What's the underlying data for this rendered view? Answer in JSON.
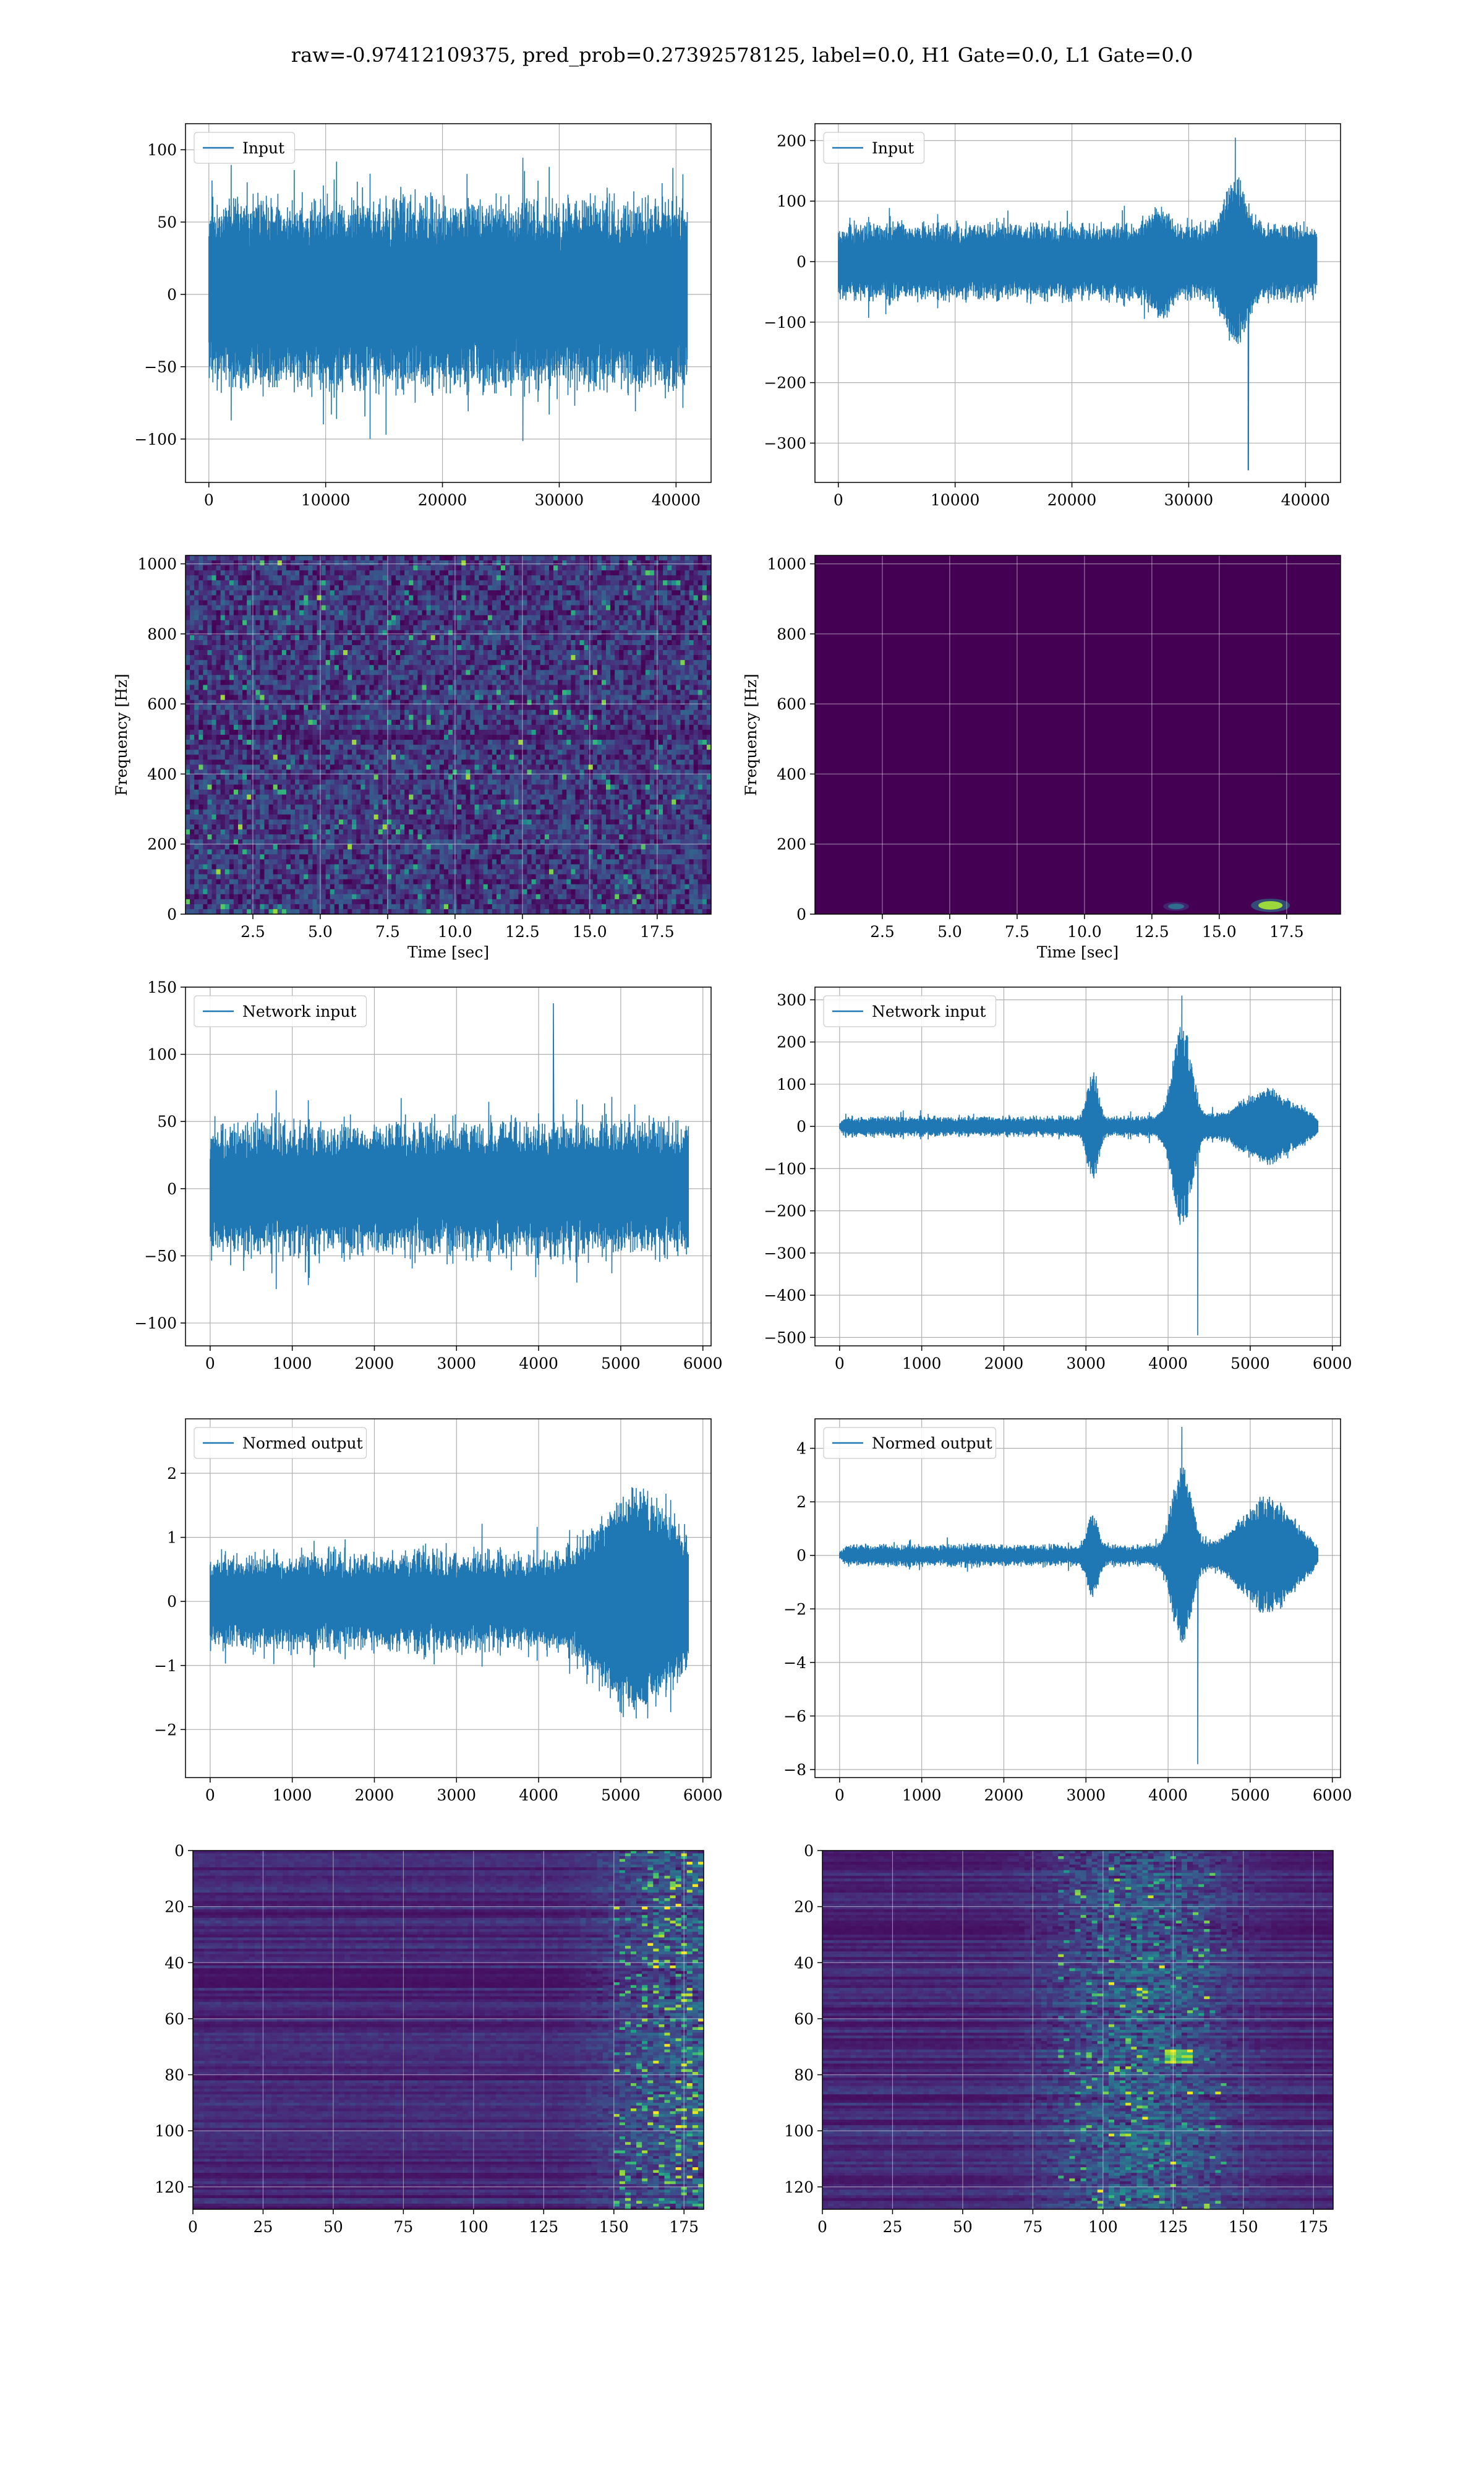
{
  "figure": {
    "title": "raw=-0.97412109375, pred_prob=0.27392578125, label=0.0, H1 Gate=0.0, L1 Gate=0.0"
  },
  "colors": {
    "series": "#1f77b4",
    "grid": "#b0b0b0",
    "viridis_dark": "#440154",
    "viridis_mid": "#21918c",
    "viridis_green": "#5ec962",
    "viridis_yellow": "#fde725"
  },
  "chart_data": [
    {
      "id": "h1-input",
      "type": "line",
      "legend": "Input",
      "legend_loc": "upper left",
      "grid": true,
      "xlim": [
        -2000,
        43000
      ],
      "ylim": [
        -130,
        118
      ],
      "x_ticks": [
        0,
        10000,
        20000,
        30000,
        40000
      ],
      "y_ticks": [
        -100,
        -50,
        0,
        50,
        100
      ],
      "x_range": [
        0,
        40960
      ],
      "n": 1200,
      "env_base": 62,
      "noise_amp": 10,
      "spike_prob": 0.05,
      "spike_amp": 45,
      "burst_centers": [],
      "burst_amps": [],
      "burst_widths": [],
      "burst_taper": 0,
      "glitch": null,
      "seed": 11
    },
    {
      "id": "l1-input",
      "type": "line",
      "legend": "Input",
      "legend_loc": "upper left",
      "grid": true,
      "xlim": [
        -2000,
        43000
      ],
      "ylim": [
        -365,
        228
      ],
      "x_ticks": [
        0,
        10000,
        20000,
        30000,
        40000
      ],
      "y_ticks": [
        -300,
        -200,
        -100,
        0,
        100,
        200
      ],
      "x_range": [
        0,
        40960
      ],
      "n": 1200,
      "env_base": 60,
      "noise_amp": 10,
      "spike_prob": 0.04,
      "spike_amp": 35,
      "burst_centers": [
        27500,
        34000
      ],
      "burst_amps": [
        40,
        95
      ],
      "burst_widths": [
        1100,
        1200
      ],
      "burst_taper": 0,
      "glitch": {
        "x": 35100,
        "y": -345,
        "peak": 205,
        "peak_x": 34000
      },
      "seed": 23
    },
    {
      "id": "h1-spectrogram",
      "type": "heatmap",
      "xlabel": "Time [sec]",
      "ylabel": "Frequency [Hz]",
      "grid": true,
      "xlim": [
        0,
        19.5
      ],
      "ylim": [
        0,
        1024
      ],
      "x_ticks": [
        2.5,
        5.0,
        7.5,
        10.0,
        12.5,
        15.0,
        17.5
      ],
      "x_tick_labels": [
        "2.5",
        "5.0",
        "7.5",
        "10.0",
        "12.5",
        "15.0",
        "17.5"
      ],
      "y_ticks": [
        0,
        200,
        400,
        600,
        800,
        1000
      ],
      "style": "speckle",
      "rows": 72,
      "cols": 120,
      "seed": 5
    },
    {
      "id": "l1-spectrogram",
      "type": "heatmap",
      "xlabel": "Time [sec]",
      "ylabel": "Frequency [Hz]",
      "grid": true,
      "xlim": [
        0,
        19.5
      ],
      "ylim": [
        0,
        1024
      ],
      "x_ticks": [
        2.5,
        5.0,
        7.5,
        10.0,
        12.5,
        15.0,
        17.5
      ],
      "x_tick_labels": [
        "2.5",
        "5.0",
        "7.5",
        "10.0",
        "12.5",
        "15.0",
        "17.5"
      ],
      "y_ticks": [
        0,
        200,
        400,
        600,
        800,
        1000
      ],
      "style": "flat",
      "hotspots": [
        {
          "x": 16.9,
          "y": 25,
          "w": 0.45,
          "h": 12,
          "level": 0.85
        },
        {
          "x": 13.4,
          "y": 22,
          "w": 0.3,
          "h": 8,
          "level": 0.35
        }
      ],
      "seed": 6
    },
    {
      "id": "h1-network-input",
      "type": "line",
      "legend": "Network input",
      "legend_loc": "upper left",
      "grid": true,
      "xlim": [
        -300,
        6100
      ],
      "ylim": [
        -117,
        150
      ],
      "x_ticks": [
        0,
        1000,
        2000,
        3000,
        4000,
        5000,
        6000
      ],
      "y_ticks": [
        -100,
        -50,
        0,
        50,
        100,
        150
      ],
      "x_range": [
        0,
        5824
      ],
      "n": 1000,
      "env_base": 45,
      "noise_amp": 12,
      "spike_prob": 0.07,
      "spike_amp": 28,
      "burst_centers": [],
      "burst_amps": [],
      "burst_widths": [],
      "burst_taper": 0,
      "glitch": {
        "x": 4180,
        "y": 138,
        "peak": 138,
        "peak_x": 4180
      },
      "seed": 31
    },
    {
      "id": "l1-network-input",
      "type": "line",
      "legend": "Network input",
      "legend_loc": "upper left",
      "grid": true,
      "xlim": [
        -300,
        6100
      ],
      "ylim": [
        -520,
        330
      ],
      "x_ticks": [
        0,
        1000,
        2000,
        3000,
        4000,
        5000,
        6000
      ],
      "y_ticks": [
        -500,
        -400,
        -300,
        -200,
        -100,
        0,
        100,
        200,
        300
      ],
      "x_range": [
        0,
        5824
      ],
      "n": 1000,
      "env_base": 22,
      "noise_amp": 6,
      "spike_prob": 0.03,
      "spike_amp": 20,
      "burst_centers": [
        3080,
        4170,
        5200
      ],
      "burst_amps": [
        120,
        230,
        70
      ],
      "burst_widths": [
        90,
        160,
        420
      ],
      "burst_taper": 120,
      "glitch": {
        "x": 4360,
        "y": -495,
        "peak": 310,
        "peak_x": 4170
      },
      "seed": 47
    },
    {
      "id": "h1-normed-output",
      "type": "line",
      "legend": "Normed output",
      "legend_loc": "upper left",
      "grid": true,
      "xlim": [
        -300,
        6100
      ],
      "ylim": [
        -2.75,
        2.85
      ],
      "x_ticks": [
        0,
        1000,
        2000,
        3000,
        4000,
        5000,
        6000
      ],
      "y_ticks": [
        -2,
        -1,
        0,
        1,
        2
      ],
      "x_range": [
        0,
        5824
      ],
      "n": 1000,
      "env_base": 0.7,
      "noise_amp": 0.18,
      "spike_prob": 0.06,
      "spike_amp": 0.45,
      "burst_centers": [
        5200
      ],
      "burst_amps": [
        1.2
      ],
      "burst_widths": [
        560
      ],
      "burst_taper": 0,
      "glitch": null,
      "seed": 59
    },
    {
      "id": "l1-normed-output",
      "type": "line",
      "legend": "Normed output",
      "legend_loc": "upper left",
      "grid": true,
      "xlim": [
        -300,
        6100
      ],
      "ylim": [
        -8.3,
        5.1
      ],
      "x_ticks": [
        0,
        1000,
        2000,
        3000,
        4000,
        5000,
        6000
      ],
      "y_ticks": [
        -8,
        -6,
        -4,
        -2,
        0,
        2,
        4
      ],
      "x_range": [
        0,
        5824
      ],
      "n": 1000,
      "env_base": 0.35,
      "noise_amp": 0.12,
      "spike_prob": 0.03,
      "spike_amp": 0.35,
      "burst_centers": [
        3080,
        4170,
        5200
      ],
      "burst_amps": [
        1.3,
        3.3,
        1.9
      ],
      "burst_widths": [
        90,
        160,
        420
      ],
      "burst_taper": 120,
      "glitch": {
        "x": 4360,
        "y": -7.8,
        "peak": 4.8,
        "peak_x": 4170
      },
      "seed": 71
    },
    {
      "id": "h1-feature-map",
      "type": "heatmap",
      "grid": true,
      "xlim": [
        0,
        182
      ],
      "ylim": [
        128,
        0
      ],
      "x_ticks": [
        0,
        25,
        50,
        75,
        100,
        125,
        150,
        175
      ],
      "y_ticks": [
        0,
        20,
        40,
        60,
        80,
        100,
        120
      ],
      "style": "bands-right",
      "rows": 128,
      "cols": 182,
      "seed": 83
    },
    {
      "id": "l1-feature-map",
      "type": "heatmap",
      "grid": true,
      "xlim": [
        0,
        182
      ],
      "ylim": [
        128,
        0
      ],
      "x_ticks": [
        0,
        25,
        50,
        75,
        100,
        125,
        150,
        175
      ],
      "y_ticks": [
        0,
        20,
        40,
        60,
        80,
        100,
        120
      ],
      "style": "bands-mid",
      "rows": 128,
      "cols": 182,
      "seed": 97
    }
  ]
}
